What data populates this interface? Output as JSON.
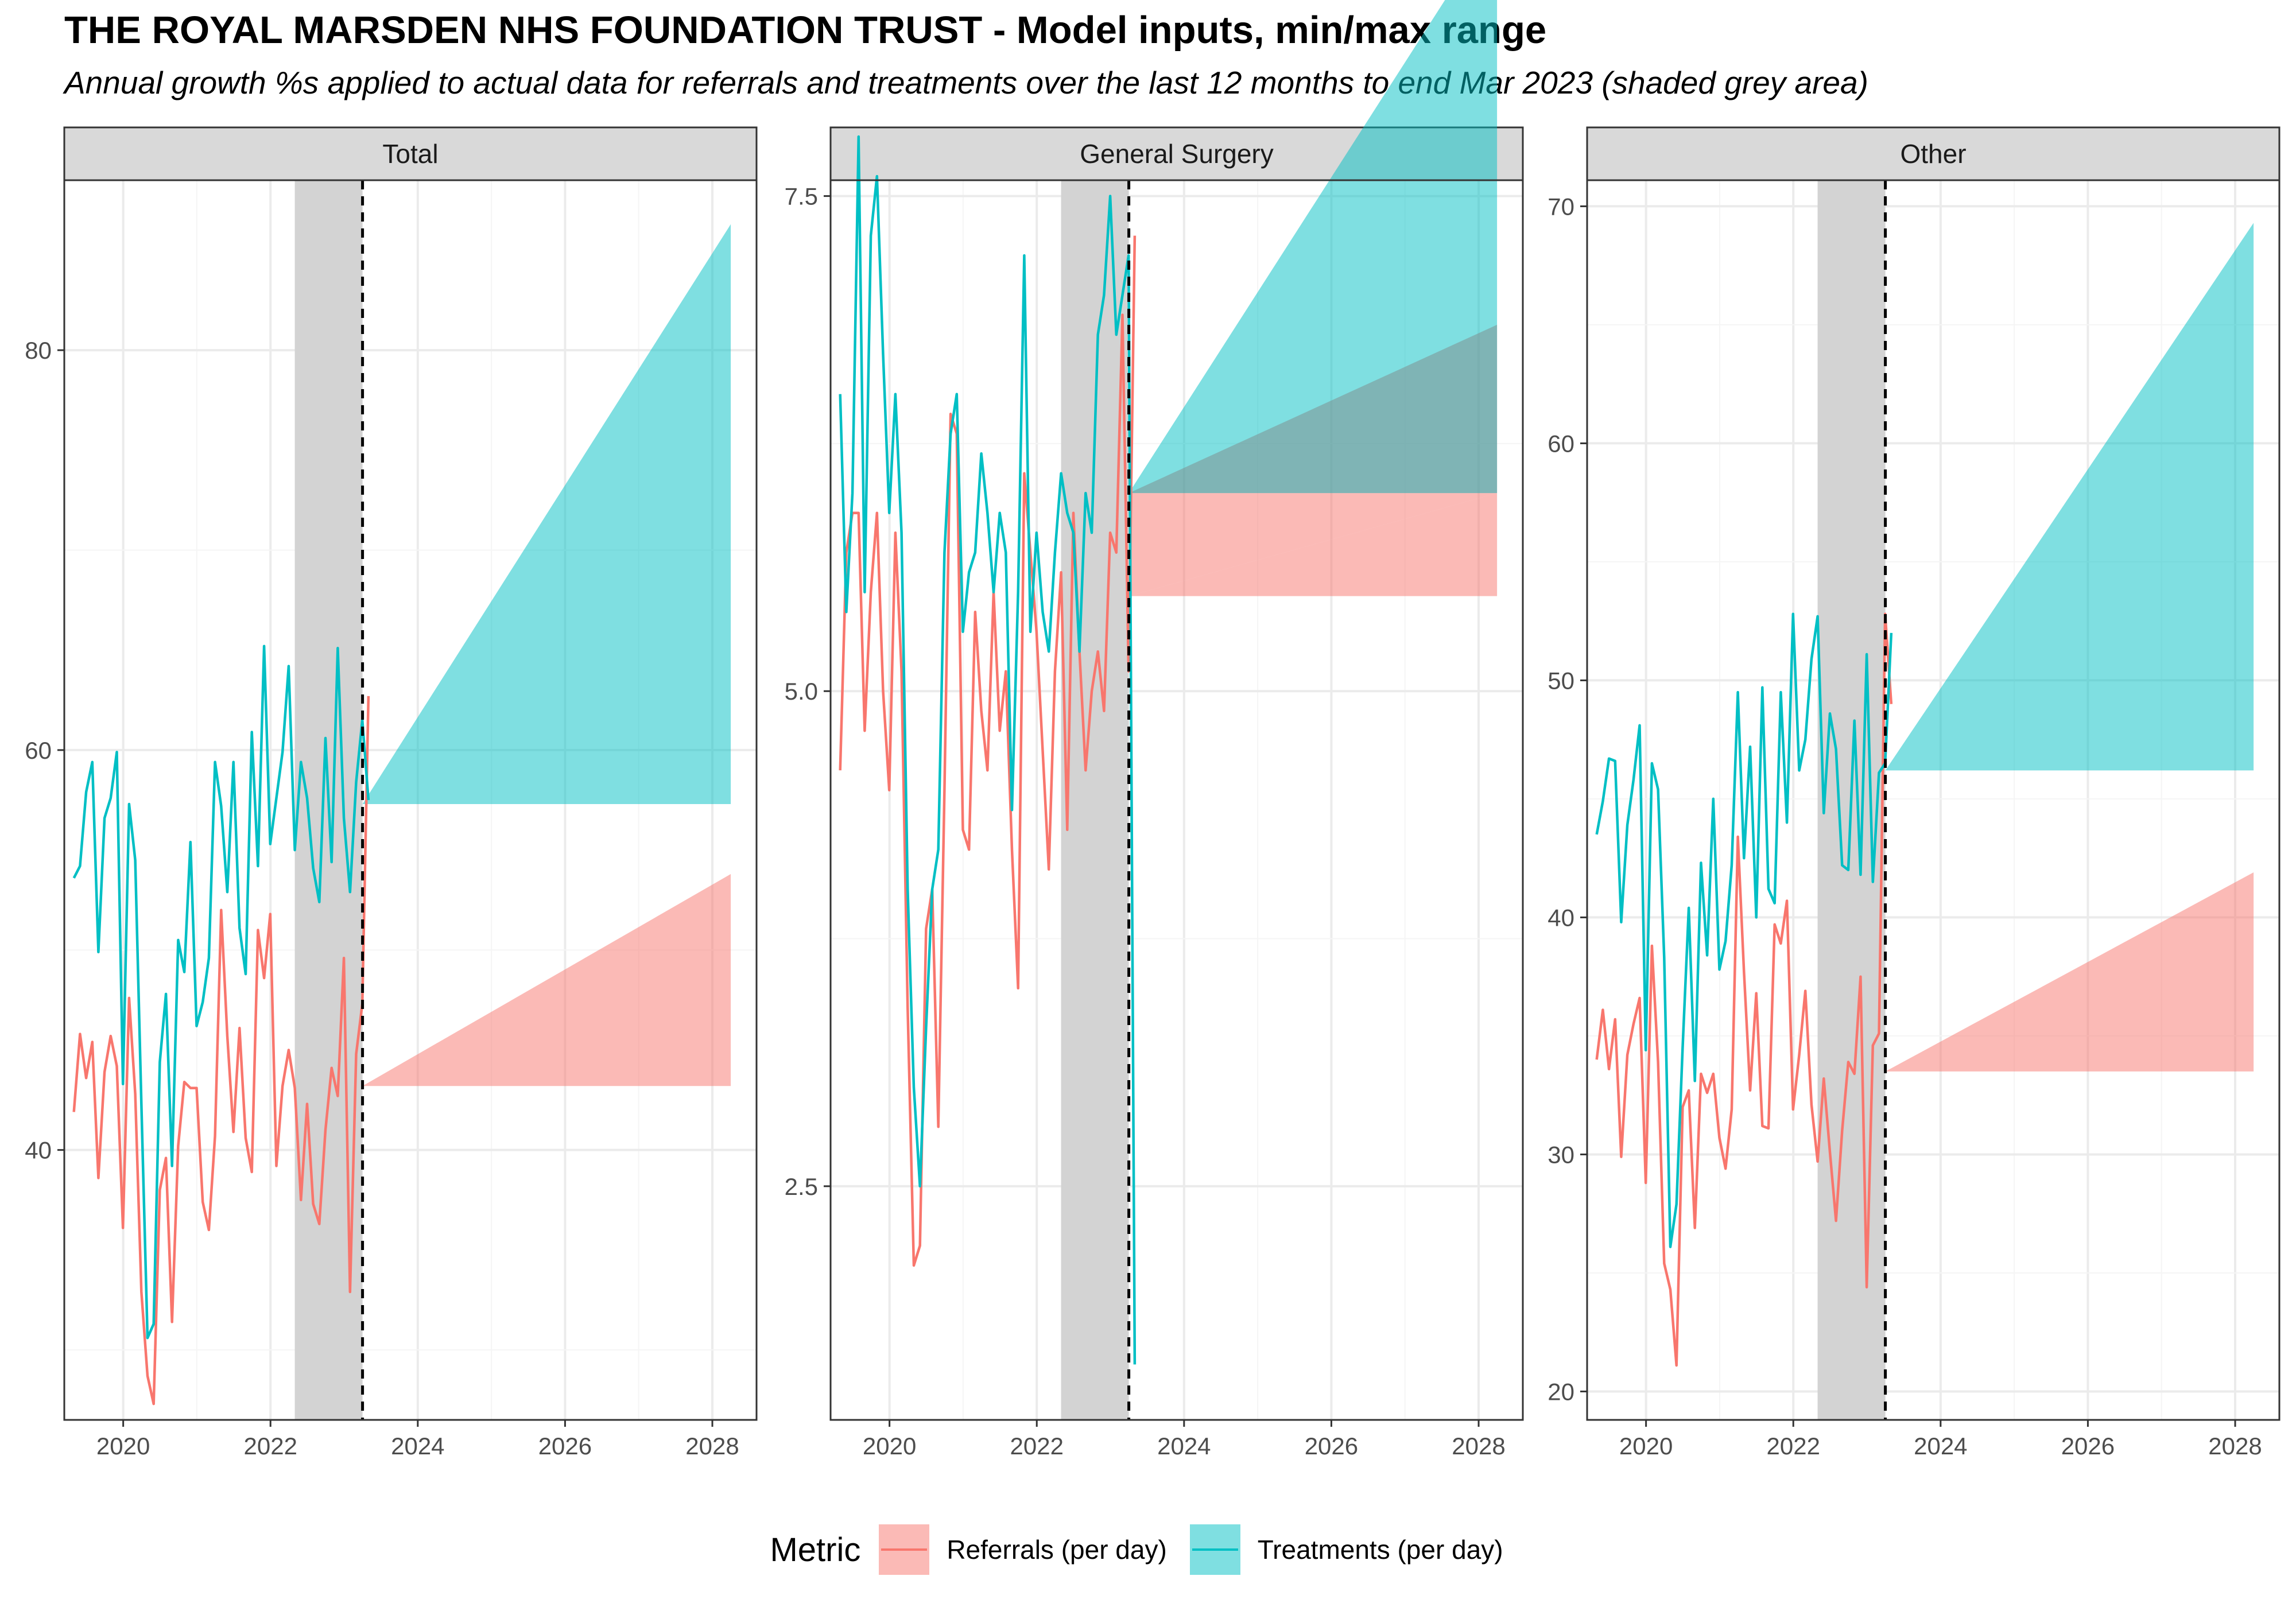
{
  "chart_data": {
    "type": "line",
    "title": "THE ROYAL MARSDEN NHS FOUNDATION TRUST - Model inputs, min/max range",
    "subtitle": "Annual growth %s applied to actual data for referrals and treatments over the last 12 months to end Mar 2023 (shaded grey area)",
    "shaded_period": [
      "2022-04",
      "2023-03"
    ],
    "projection_start": 2023.25,
    "xlim": [
      2019.2,
      2028.6
    ],
    "xticks": [
      "2020",
      "2022",
      "2024",
      "2026",
      "2028"
    ],
    "grid": true,
    "legend": {
      "title": "Metric",
      "position": "bottom",
      "items": [
        {
          "name": "Referrals (per day)",
          "color": "#F8766D"
        },
        {
          "name": "Treatments (per day)",
          "color": "#00BFC4"
        }
      ]
    },
    "panels": [
      {
        "name": "Total",
        "ylim": [
          26.5,
          88.5
        ],
        "yticks": [
          "40",
          "60",
          "80"
        ],
        "yticks_values": [
          40,
          60,
          80
        ],
        "series": [
          {
            "name": "Referrals (per day)",
            "color": "#F8766D",
            "x_start": 2019.33,
            "values": [
              41.9,
              45.8,
              43.6,
              45.4,
              38.6,
              43.9,
              45.7,
              44.2,
              36.1,
              47.6,
              42.8,
              32.9,
              28.7,
              27.3,
              38.0,
              39.6,
              31.4,
              40.2,
              43.4,
              43.1,
              43.1,
              37.4,
              36.0,
              40.7,
              52.0,
              45.7,
              40.9,
              46.1,
              40.6,
              38.9,
              51.0,
              48.6,
              51.8,
              39.2,
              43.2,
              45.0,
              43.1,
              37.5,
              42.3,
              37.3,
              36.3,
              41.0,
              44.1,
              42.7,
              49.6,
              32.9,
              44.8,
              47.3,
              62.7
            ]
          },
          {
            "name": "Treatments (per day)",
            "color": "#00BFC4",
            "x_start": 2019.33,
            "values": [
              53.6,
              54.2,
              57.9,
              59.4,
              49.9,
              56.6,
              57.6,
              59.9,
              43.3,
              57.3,
              54.5,
              42.3,
              30.6,
              31.3,
              44.4,
              47.8,
              39.2,
              50.5,
              48.9,
              55.4,
              46.2,
              47.4,
              49.6,
              59.4,
              57.2,
              52.9,
              59.4,
              51.1,
              48.8,
              60.9,
              54.2,
              65.2,
              55.3,
              57.6,
              59.9,
              64.2,
              55.0,
              59.4,
              57.6,
              54.1,
              52.4,
              60.6,
              54.4,
              65.1,
              56.6,
              52.9,
              58.4,
              61.5,
              57.5
            ]
          }
        ],
        "ranges": [
          {
            "name": "Referrals (per day)",
            "x": [
              2023.25,
              2028.25
            ],
            "base": 43.2,
            "max_end": 53.8
          },
          {
            "name": "Treatments (per day)",
            "x": [
              2023.25,
              2028.25
            ],
            "base": 57.3,
            "max_end": 86.3
          }
        ]
      },
      {
        "name": "General Surgery",
        "ylim": [
          1.32,
          7.58
        ],
        "yticks": [
          "2.5",
          "5.0",
          "7.5"
        ],
        "yticks_values": [
          2.5,
          5.0,
          7.5
        ],
        "series": [
          {
            "name": "Referrals (per day)",
            "color": "#F8766D",
            "x_start": 2019.33,
            "values": [
              4.6,
              5.7,
              5.9,
              5.9,
              4.8,
              5.5,
              5.9,
              5.0,
              4.5,
              5.8,
              5.1,
              3.4,
              2.1,
              2.2,
              3.8,
              4.0,
              2.8,
              4.5,
              6.4,
              6.3,
              4.3,
              4.2,
              5.4,
              4.9,
              4.6,
              5.5,
              4.8,
              5.1,
              4.2,
              3.5,
              6.1,
              5.7,
              5.3,
              4.7,
              4.1,
              5.1,
              5.6,
              4.3,
              5.9,
              5.2,
              4.6,
              5.0,
              5.2,
              4.9,
              5.8,
              5.7,
              6.9,
              5.1,
              7.3
            ]
          },
          {
            "name": "Treatments (per day)",
            "color": "#00BFC4",
            "x_start": 2019.33,
            "values": [
              6.5,
              5.4,
              6.0,
              7.8,
              5.5,
              7.3,
              7.6,
              6.7,
              5.9,
              6.5,
              5.8,
              4.0,
              3.0,
              2.5,
              3.3,
              4.0,
              4.2,
              5.7,
              6.3,
              6.5,
              5.3,
              5.6,
              5.7,
              6.2,
              5.9,
              5.5,
              5.9,
              5.7,
              4.4,
              5.5,
              7.2,
              5.3,
              5.8,
              5.4,
              5.2,
              5.7,
              6.1,
              5.9,
              5.8,
              5.2,
              6.0,
              5.8,
              6.8,
              7.0,
              7.5,
              6.8,
              7.0,
              7.2,
              1.6
            ]
          }
        ],
        "ranges": [
          {
            "name": "Referrals (per day)",
            "x": [
              2023.25,
              2028.25
            ],
            "base": 5.48,
            "max_end": 6.0
          },
          {
            "name": "Treatments (per day)",
            "x": [
              2023.25,
              2028.25
            ],
            "base": 6.0,
            "max_end": 8.9
          },
          {
            "name": "Referrals (per day)",
            "x": [
              2023.25,
              2028.25
            ],
            "base": 6.0,
            "max_end": 6.85,
            "overlap": true
          }
        ]
      },
      {
        "name": "Other",
        "ylim": [
          18.8,
          71.1
        ],
        "yticks": [
          "20",
          "30",
          "40",
          "50",
          "60",
          "70"
        ],
        "yticks_values": [
          20,
          30,
          40,
          50,
          60,
          70
        ],
        "series": [
          {
            "name": "Referrals (per day)",
            "color": "#F8766D",
            "x_start": 2019.33,
            "values": [
              34.0,
              36.1,
              33.6,
              35.7,
              29.9,
              34.2,
              35.5,
              36.6,
              28.8,
              38.8,
              33.9,
              25.4,
              24.3,
              21.1,
              32.0,
              32.7,
              26.9,
              33.4,
              32.6,
              33.4,
              30.7,
              29.4,
              31.9,
              43.4,
              37.7,
              32.7,
              36.8,
              31.2,
              31.1,
              39.7,
              38.9,
              40.7,
              31.9,
              34.2,
              36.9,
              32.1,
              29.7,
              33.2,
              30.1,
              27.2,
              31.0,
              33.9,
              33.4,
              37.5,
              24.4,
              34.6,
              35.1,
              52.8,
              49.0
            ]
          },
          {
            "name": "Treatments (per day)",
            "color": "#00BFC4",
            "x_start": 2019.33,
            "values": [
              43.5,
              44.9,
              46.7,
              46.6,
              39.8,
              43.9,
              45.8,
              48.1,
              34.4,
              46.5,
              45.4,
              38.3,
              26.1,
              27.9,
              34.5,
              40.4,
              33.1,
              42.3,
              38.4,
              45.0,
              37.8,
              39.0,
              42.2,
              49.5,
              42.5,
              47.2,
              40.0,
              49.7,
              41.2,
              40.6,
              49.5,
              44.0,
              52.8,
              46.2,
              47.5,
              50.9,
              52.7,
              44.4,
              48.6,
              47.1,
              42.2,
              42.0,
              48.3,
              41.8,
              51.1,
              41.5,
              46.1,
              46.5,
              52.0
            ]
          }
        ],
        "ranges": [
          {
            "name": "Referrals (per day)",
            "x": [
              2023.25,
              2028.25
            ],
            "base": 33.5,
            "max_end": 41.9
          },
          {
            "name": "Treatments (per day)",
            "x": [
              2023.25,
              2028.25
            ],
            "base": 46.2,
            "max_end": 69.3
          }
        ]
      }
    ]
  }
}
